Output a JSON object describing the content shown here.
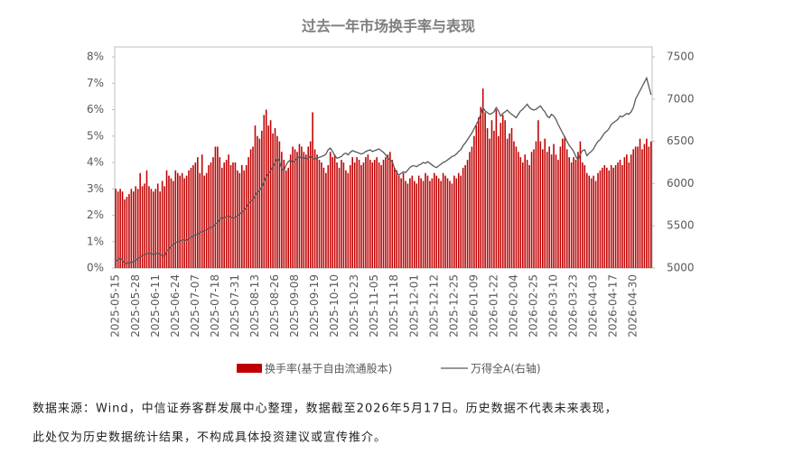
{
  "chart_data": {
    "type": "bar-line",
    "title": "过去一年市场换手率与表现",
    "categories": [
      "2025-05-15",
      null,
      null,
      null,
      null,
      null,
      null,
      null,
      null,
      "2025-05-28",
      null,
      null,
      null,
      null,
      null,
      null,
      null,
      null,
      "2025-06-11",
      null,
      null,
      null,
      null,
      null,
      null,
      null,
      null,
      "2025-06-24",
      null,
      null,
      null,
      null,
      null,
      null,
      null,
      null,
      "2025-07-07",
      null,
      null,
      null,
      null,
      null,
      null,
      null,
      null,
      "2025-07-18",
      null,
      null,
      null,
      null,
      null,
      null,
      null,
      null,
      "2025-07-31",
      null,
      null,
      null,
      null,
      null,
      null,
      null,
      null,
      "2025-08-13",
      null,
      null,
      null,
      null,
      null,
      null,
      null,
      null,
      "2025-08-26",
      null,
      null,
      null,
      null,
      null,
      null,
      null,
      null,
      "2025-09-08",
      null,
      null,
      null,
      null,
      null,
      null,
      null,
      null,
      "2025-09-19",
      null,
      null,
      null,
      null,
      null,
      null,
      null,
      null,
      "2025-10-10",
      null,
      null,
      null,
      null,
      null,
      null,
      null,
      null,
      "2025-10-23",
      null,
      null,
      null,
      null,
      null,
      null,
      null,
      null,
      "2025-11-05",
      null,
      null,
      null,
      null,
      null,
      null,
      null,
      null,
      "2025-11-18",
      null,
      null,
      null,
      null,
      null,
      null,
      null,
      null,
      "2025-12-01",
      null,
      null,
      null,
      null,
      null,
      null,
      null,
      null,
      "2025-12-12",
      null,
      null,
      null,
      null,
      null,
      null,
      null,
      null,
      "2025-12-25",
      null,
      null,
      null,
      null,
      null,
      null,
      null,
      null,
      "2026-01-09",
      null,
      null,
      null,
      null,
      null,
      null,
      null,
      null,
      "2026-01-22",
      null,
      null,
      null,
      null,
      null,
      null,
      null,
      null,
      "2026-02-04",
      null,
      null,
      null,
      null,
      null,
      null,
      null,
      null,
      "2026-02-25",
      null,
      null,
      null,
      null,
      null,
      null,
      null,
      null,
      "2026-03-10",
      null,
      null,
      null,
      null,
      null,
      null,
      null,
      null,
      "2026-03-23",
      null,
      null,
      null,
      null,
      null,
      null,
      null,
      null,
      "2026-04-03",
      null,
      null,
      null,
      null,
      null,
      null,
      null,
      null,
      "2026-04-17",
      null,
      null,
      null,
      null,
      null,
      null,
      null,
      null,
      "2026-04-30",
      null,
      null,
      null,
      null,
      null,
      null,
      null,
      null
    ],
    "series": [
      {
        "name": "换手率(基于自由流通股本)",
        "type": "bar",
        "color": "#c00000",
        "values": [
          3.0,
          2.9,
          3.0,
          2.9,
          2.6,
          2.7,
          2.8,
          3.0,
          2.9,
          3.1,
          3.0,
          3.6,
          3.1,
          3.2,
          3.7,
          3.1,
          3.0,
          2.9,
          3.0,
          3.2,
          2.9,
          3.3,
          3.1,
          3.7,
          3.5,
          3.4,
          3.3,
          3.7,
          3.6,
          3.5,
          3.6,
          3.4,
          3.5,
          3.7,
          3.8,
          3.9,
          4.0,
          4.2,
          3.6,
          4.3,
          3.5,
          3.6,
          3.9,
          4.0,
          4.2,
          4.6,
          4.6,
          4.2,
          3.8,
          4.0,
          4.1,
          4.3,
          3.9,
          4.0,
          4.0,
          3.7,
          3.6,
          3.9,
          3.7,
          3.9,
          4.2,
          4.5,
          4.6,
          5.4,
          5.0,
          4.9,
          5.2,
          5.8,
          6.0,
          5.4,
          5.6,
          5.1,
          5.3,
          5.0,
          4.8,
          4.4,
          4.1,
          3.7,
          3.8,
          4.3,
          4.6,
          4.5,
          4.4,
          4.7,
          4.6,
          4.4,
          4.3,
          4.6,
          4.8,
          5.9,
          4.5,
          4.3,
          4.1,
          4.0,
          3.8,
          3.6,
          3.9,
          4.4,
          4.2,
          4.3,
          4.0,
          3.8,
          4.1,
          4.0,
          3.7,
          3.6,
          3.9,
          4.2,
          4.0,
          4.2,
          4.1,
          3.9,
          4.0,
          4.2,
          4.3,
          4.1,
          4.0,
          4.1,
          4.2,
          4.0,
          3.9,
          4.1,
          4.2,
          4.3,
          4.4,
          4.1,
          3.8,
          3.7,
          3.5,
          3.4,
          3.6,
          3.3,
          3.2,
          3.4,
          3.5,
          3.3,
          3.2,
          3.5,
          3.4,
          3.3,
          3.6,
          3.5,
          3.3,
          3.4,
          3.6,
          3.5,
          3.4,
          3.3,
          3.6,
          3.5,
          3.4,
          3.3,
          3.2,
          3.5,
          3.4,
          3.6,
          3.5,
          3.8,
          3.9,
          4.1,
          4.4,
          4.6,
          5.0,
          5.4,
          5.7,
          6.1,
          6.8,
          5.9,
          5.3,
          4.9,
          5.6,
          5.2,
          6.0,
          5.0,
          5.5,
          5.8,
          5.6,
          4.9,
          5.1,
          5.3,
          4.8,
          4.6,
          4.4,
          4.2,
          4.0,
          4.3,
          4.1,
          3.9,
          4.4,
          4.5,
          4.8,
          5.6,
          4.8,
          4.5,
          4.9,
          4.4,
          4.6,
          4.3,
          4.7,
          4.3,
          4.1,
          4.6,
          4.9,
          5.0,
          4.5,
          4.2,
          4.0,
          4.2,
          4.1,
          4.4,
          4.8,
          4.0,
          3.9,
          3.6,
          3.5,
          3.4,
          3.5,
          3.3,
          3.6,
          3.7,
          3.8,
          3.9,
          3.8,
          3.7,
          3.9,
          3.8,
          3.9,
          4.0,
          4.1,
          3.9,
          4.2,
          4.3,
          4.0,
          4.3,
          4.5,
          4.6,
          4.6,
          4.9,
          4.5,
          4.7,
          4.9,
          4.6,
          4.8
        ]
      },
      {
        "name": "万得全A(右轴)",
        "type": "line",
        "axis": "y2",
        "color": "#595959",
        "values": [
          5080,
          5100,
          5120,
          5090,
          5060,
          5050,
          5070,
          5060,
          5080,
          5090,
          5110,
          5130,
          5150,
          5160,
          5170,
          5180,
          5170,
          5160,
          5170,
          5180,
          5160,
          5150,
          5140,
          5200,
          5220,
          5260,
          5280,
          5300,
          5310,
          5320,
          5330,
          5340,
          5320,
          5350,
          5360,
          5380,
          5390,
          5400,
          5420,
          5430,
          5440,
          5450,
          5470,
          5480,
          5490,
          5520,
          5540,
          5580,
          5600,
          5590,
          5610,
          5620,
          5600,
          5590,
          5600,
          5620,
          5640,
          5660,
          5680,
          5720,
          5760,
          5790,
          5810,
          5860,
          5900,
          5920,
          5960,
          6020,
          6080,
          6120,
          6150,
          6200,
          6250,
          6300,
          6260,
          6180,
          6150,
          6220,
          6260,
          6280,
          6250,
          6270,
          6300,
          6320,
          6300,
          6310,
          6290,
          6300,
          6330,
          6300,
          6290,
          6300,
          6310,
          6320,
          6330,
          6350,
          6400,
          6420,
          6380,
          6330,
          6300,
          6310,
          6320,
          6350,
          6360,
          6340,
          6370,
          6390,
          6380,
          6370,
          6360,
          6350,
          6360,
          6380,
          6390,
          6400,
          6380,
          6390,
          6400,
          6410,
          6390,
          6370,
          6340,
          6300,
          6280,
          6260,
          6180,
          6130,
          6100,
          6120,
          6140,
          6130,
          6160,
          6190,
          6210,
          6210,
          6200,
          6220,
          6230,
          6250,
          6240,
          6260,
          6240,
          6220,
          6200,
          6190,
          6210,
          6230,
          6250,
          6260,
          6280,
          6300,
          6320,
          6330,
          6350,
          6380,
          6400,
          6450,
          6480,
          6520,
          6560,
          6600,
          6650,
          6700,
          6750,
          6820,
          6900,
          6860,
          6840,
          6820,
          6830,
          6850,
          6900,
          6860,
          6800,
          6830,
          6850,
          6870,
          6840,
          6820,
          6800,
          6780,
          6820,
          6860,
          6880,
          6910,
          6940,
          6900,
          6880,
          6870,
          6880,
          6900,
          6920,
          6880,
          6850,
          6800,
          6780,
          6820,
          6800,
          6760,
          6700,
          6650,
          6600,
          6550,
          6500,
          6450,
          6420,
          6380,
          6320,
          6280,
          6350,
          6390,
          6400,
          6330,
          6360,
          6380,
          6410,
          6460,
          6500,
          6520,
          6560,
          6600,
          6620,
          6650,
          6700,
          6720,
          6740,
          6760,
          6800,
          6790,
          6810,
          6830,
          6820,
          6850,
          6900,
          7000,
          7050,
          7100,
          7150,
          7200,
          7250,
          7150,
          7050
        ]
      }
    ],
    "ylim": [
      0,
      8
    ],
    "yticks": [
      {
        "value": 0,
        "label": "0%"
      },
      {
        "value": 1,
        "label": "1%"
      },
      {
        "value": 2,
        "label": "2%"
      },
      {
        "value": 3,
        "label": "3%"
      },
      {
        "value": 4,
        "label": "4%"
      },
      {
        "value": 5,
        "label": "5%"
      },
      {
        "value": 6,
        "label": "6%"
      },
      {
        "value": 7,
        "label": "7%"
      },
      {
        "value": 8,
        "label": "8%"
      }
    ],
    "y2lim": [
      5000,
      7500
    ],
    "y2ticks": [
      5000,
      5500,
      6000,
      6500,
      7000,
      7500
    ],
    "legend": "bottom",
    "notes": [
      "数据来源：Wind，中信证券客群发展中心整理，数据截至2026年5月17日。历史数据不代表未来表现，",
      "此处仅为历史数据统计结果，不构成具体投资建议或宣传推介。"
    ]
  }
}
